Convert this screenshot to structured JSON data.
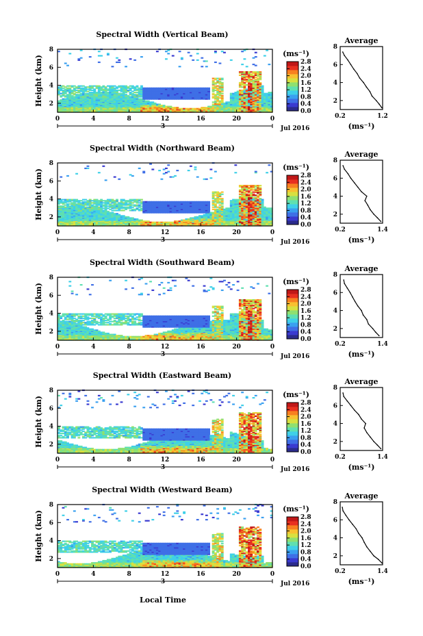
{
  "figure": {
    "xlabel": "Local Time",
    "avg_title": "Average",
    "colorbar_unit": "(ms⁻¹)",
    "avg_xlabel": "(ms⁻¹)",
    "date_label": "Jul 2016",
    "day_label": "3"
  },
  "colormap": [
    "#2b2b8c",
    "#3a3ad0",
    "#3f6fe6",
    "#3aa0f0",
    "#3fd0e8",
    "#5fe0b0",
    "#8fe070",
    "#d8e040",
    "#f8c030",
    "#f88020",
    "#e83020",
    "#c01818"
  ],
  "chart_data": [
    {
      "type": "heatmap",
      "title": "Spectral Width (Vertical Beam)",
      "xlabel": "",
      "ylabel": "Height (km)",
      "x_ticks": [
        "0",
        "4",
        "8",
        "12",
        "16",
        "20",
        "0"
      ],
      "y_ticks": [
        "2",
        "4",
        "6",
        "8"
      ],
      "xlim": [
        0,
        24
      ],
      "ylim": [
        1,
        8
      ],
      "colorbar": {
        "ticks": [
          "0.0",
          "0.4",
          "0.8",
          "1.2",
          "1.6",
          "2.0",
          "2.4",
          "2.8"
        ],
        "range": [
          0,
          2.8
        ]
      },
      "average_profile": {
        "x_ticks": [
          "0.2",
          "1.2"
        ],
        "xlim": [
          0.2,
          1.2
        ],
        "y_ticks": [
          "2",
          "4",
          "6",
          "8"
        ],
        "ylim": [
          1,
          8
        ],
        "height": [
          1.2,
          1.6,
          2.0,
          2.5,
          3.0,
          3.5,
          4.0,
          4.5,
          5.0,
          5.5,
          6.0,
          6.5,
          7.0,
          7.4
        ],
        "width": [
          1.18,
          1.12,
          1.05,
          0.95,
          0.9,
          0.82,
          0.75,
          0.66,
          0.6,
          0.52,
          0.45,
          0.38,
          0.3,
          0.26
        ]
      }
    },
    {
      "type": "heatmap",
      "title": "Spectral Width (Northward Beam)",
      "xlabel": "",
      "ylabel": "Height (km)",
      "x_ticks": [
        "0",
        "4",
        "8",
        "12",
        "16",
        "20",
        "0"
      ],
      "y_ticks": [
        "2",
        "4",
        "6",
        "8"
      ],
      "xlim": [
        0,
        24
      ],
      "ylim": [
        1,
        8
      ],
      "colorbar": {
        "ticks": [
          "0.0",
          "0.4",
          "0.8",
          "1.2",
          "1.6",
          "2.0",
          "2.4",
          "2.8"
        ],
        "range": [
          0,
          2.8
        ]
      },
      "average_profile": {
        "x_ticks": [
          "0.2",
          "1.4"
        ],
        "xlim": [
          0.2,
          1.4
        ],
        "y_ticks": [
          "2",
          "4",
          "6",
          "8"
        ],
        "ylim": [
          1,
          8
        ],
        "height": [
          1.2,
          1.6,
          2.0,
          2.5,
          3.0,
          3.5,
          4.0,
          4.5,
          5.0,
          5.5,
          6.0,
          6.5,
          7.0,
          7.4
        ],
        "width": [
          1.35,
          1.25,
          1.15,
          1.05,
          0.98,
          0.9,
          0.95,
          0.8,
          0.7,
          0.6,
          0.5,
          0.42,
          0.32,
          0.28
        ]
      }
    },
    {
      "type": "heatmap",
      "title": "Spectral Width (Southward Beam)",
      "xlabel": "",
      "ylabel": "Height (km)",
      "x_ticks": [
        "0",
        "4",
        "8",
        "12",
        "16",
        "20",
        "0"
      ],
      "y_ticks": [
        "2",
        "4",
        "6",
        "8"
      ],
      "xlim": [
        0,
        24
      ],
      "ylim": [
        1,
        8
      ],
      "colorbar": {
        "ticks": [
          "0.0",
          "0.4",
          "0.8",
          "1.2",
          "1.6",
          "2.0",
          "2.4",
          "2.8"
        ],
        "range": [
          0,
          2.8
        ]
      },
      "average_profile": {
        "x_ticks": [
          "0.2",
          "1.4"
        ],
        "xlim": [
          0.2,
          1.4
        ],
        "y_ticks": [
          "2",
          "4",
          "6",
          "8"
        ],
        "ylim": [
          1,
          8
        ],
        "height": [
          1.2,
          1.6,
          2.0,
          2.5,
          3.0,
          3.5,
          4.0,
          4.5,
          5.0,
          5.5,
          6.0,
          6.5,
          7.0,
          7.4
        ],
        "width": [
          1.3,
          1.2,
          1.12,
          1.0,
          0.95,
          0.85,
          0.8,
          0.7,
          0.62,
          0.55,
          0.48,
          0.4,
          0.32,
          0.3
        ]
      }
    },
    {
      "type": "heatmap",
      "title": "Spectral Width (Eastward Beam)",
      "xlabel": "",
      "ylabel": "Height (km)",
      "x_ticks": [
        "0",
        "4",
        "8",
        "12",
        "16",
        "20",
        "0"
      ],
      "y_ticks": [
        "2",
        "4",
        "6",
        "8"
      ],
      "xlim": [
        0,
        24
      ],
      "ylim": [
        1,
        8
      ],
      "colorbar": {
        "ticks": [
          "0.0",
          "0.4",
          "0.8",
          "1.2",
          "1.6",
          "2.0",
          "2.4",
          "2.8"
        ],
        "range": [
          0,
          2.8
        ]
      },
      "average_profile": {
        "x_ticks": [
          "0.2",
          "1.4"
        ],
        "xlim": [
          0.2,
          1.4
        ],
        "y_ticks": [
          "2",
          "4",
          "6",
          "8"
        ],
        "ylim": [
          1,
          8
        ],
        "height": [
          1.2,
          1.6,
          2.0,
          2.5,
          3.0,
          3.5,
          4.0,
          4.5,
          5.0,
          5.5,
          6.0,
          6.5,
          7.0,
          7.4
        ],
        "width": [
          1.35,
          1.25,
          1.15,
          1.05,
          0.95,
          0.88,
          0.92,
          0.8,
          0.72,
          0.6,
          0.5,
          0.4,
          0.3,
          0.28
        ]
      }
    },
    {
      "type": "heatmap",
      "title": "Spectral Width (Westward Beam)",
      "xlabel": "Local Time",
      "ylabel": "Height (km)",
      "x_ticks": [
        "0",
        "4",
        "8",
        "12",
        "16",
        "20",
        "0"
      ],
      "y_ticks": [
        "2",
        "4",
        "6",
        "8"
      ],
      "xlim": [
        0,
        24
      ],
      "ylim": [
        1,
        8
      ],
      "colorbar": {
        "ticks": [
          "0.0",
          "0.4",
          "0.8",
          "1.2",
          "1.6",
          "2.0",
          "2.4",
          "2.8"
        ],
        "range": [
          0,
          2.8
        ]
      },
      "average_profile": {
        "x_ticks": [
          "0.2",
          "1.4"
        ],
        "xlim": [
          0.2,
          1.4
        ],
        "y_ticks": [
          "2",
          "4",
          "6",
          "8"
        ],
        "ylim": [
          1,
          8
        ],
        "height": [
          1.2,
          1.6,
          2.0,
          2.5,
          3.0,
          3.5,
          4.0,
          4.5,
          5.0,
          5.5,
          6.0,
          6.5,
          7.0,
          7.4
        ],
        "width": [
          1.38,
          1.28,
          1.15,
          1.05,
          0.95,
          0.88,
          0.82,
          0.72,
          0.65,
          0.55,
          0.45,
          0.36,
          0.28,
          0.26
        ]
      }
    }
  ]
}
